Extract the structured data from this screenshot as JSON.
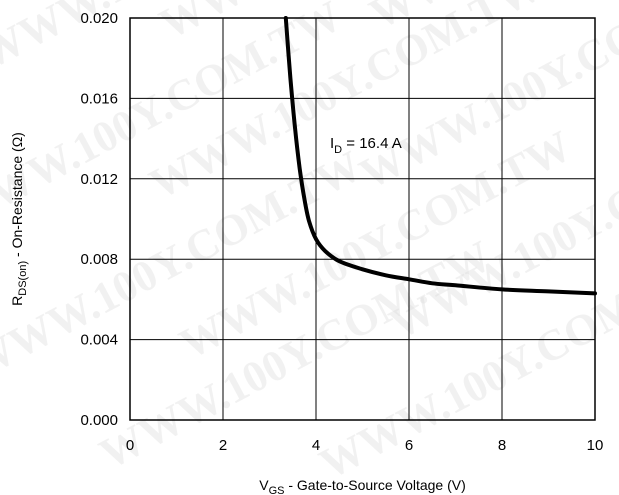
{
  "chart_data": {
    "type": "line",
    "xlabel": {
      "main": "V",
      "sub": "GS",
      "rest": " - Gate-to-Source Voltage (V)"
    },
    "ylabel": {
      "main": "R",
      "sub": "DS(on)",
      "rest": " - On-Resistance (Ω)"
    },
    "xlim": [
      0,
      10
    ],
    "ylim": [
      0,
      0.02
    ],
    "x_ticks": [
      "0",
      "2",
      "4",
      "6",
      "8",
      "10"
    ],
    "y_ticks": [
      "0.000",
      "0.004",
      "0.008",
      "0.012",
      "0.016",
      "0.020"
    ],
    "grid": true,
    "annotation": {
      "main": "I",
      "sub": "D",
      "rest": " = 16.4 A"
    },
    "series": [
      {
        "color": "#000000",
        "points": [
          [
            3.35,
            0.02
          ],
          [
            3.45,
            0.017
          ],
          [
            3.55,
            0.0145
          ],
          [
            3.65,
            0.0125
          ],
          [
            3.75,
            0.011
          ],
          [
            3.85,
            0.0099
          ],
          [
            4.0,
            0.009
          ],
          [
            4.2,
            0.0084
          ],
          [
            4.5,
            0.0079
          ],
          [
            5.0,
            0.0075
          ],
          [
            5.5,
            0.0072
          ],
          [
            6.0,
            0.007
          ],
          [
            6.5,
            0.0068
          ],
          [
            7.0,
            0.0067
          ],
          [
            8.0,
            0.0065
          ],
          [
            9.0,
            0.0064
          ],
          [
            10.0,
            0.0063
          ]
        ]
      }
    ],
    "watermark": "WWW.100Y.COM.TW"
  }
}
